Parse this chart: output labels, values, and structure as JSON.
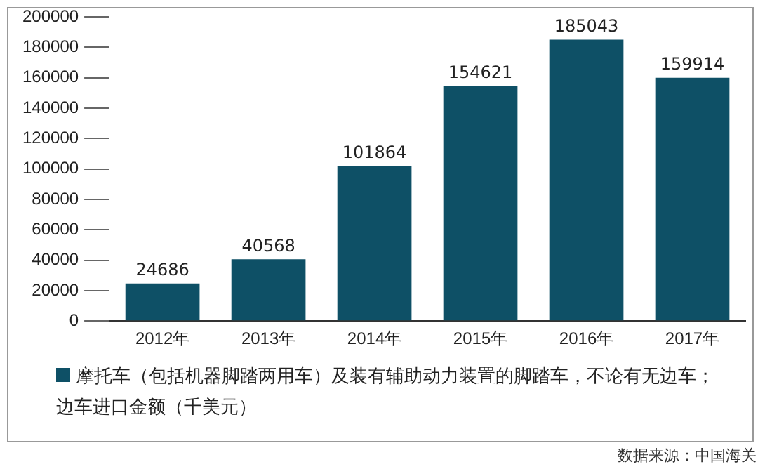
{
  "chart_data": {
    "type": "bar",
    "categories": [
      "2012年",
      "2013年",
      "2014年",
      "2015年",
      "2016年",
      "2017年"
    ],
    "series": [
      {
        "name": "摩托车（包括机器脚踏两用车）及装有辅助动力装置的脚踏车，不论有无边车；边车进口金额（千美元）",
        "color": "#0e5066",
        "values": [
          24686,
          40568,
          101864,
          154621,
          185043,
          159914
        ]
      }
    ],
    "ylim": [
      0,
      200000
    ],
    "yticks": [
      0,
      20000,
      40000,
      60000,
      80000,
      100000,
      120000,
      140000,
      160000,
      180000,
      200000
    ],
    "grid": false,
    "legend": "bottom",
    "data_labels": true,
    "annotations": [
      "数据来源：中国海关"
    ]
  }
}
